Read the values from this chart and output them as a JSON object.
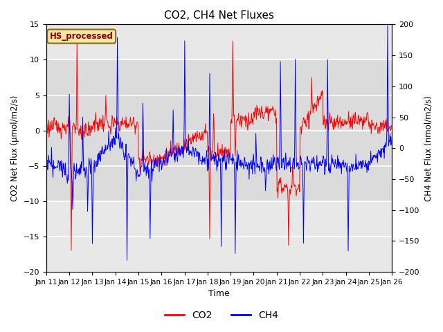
{
  "title": "CO2, CH4 Net Fluxes",
  "xlabel": "Time",
  "ylabel_left": "CO2 Net Flux (μmol/m2/s)",
  "ylabel_right": "CH4 Net Flux (nmol/m2/s)",
  "ylim_left": [
    -20,
    15
  ],
  "ylim_right": [
    -200,
    200
  ],
  "yticks_left": [
    -20,
    -15,
    -10,
    -5,
    0,
    5,
    10,
    15
  ],
  "yticks_right": [
    -200,
    -150,
    -100,
    -50,
    0,
    50,
    100,
    150,
    200
  ],
  "xticklabels": [
    "Jan 11",
    "Jan 12",
    "Jan 13",
    "Jan 14",
    "Jan 15",
    "Jan 16",
    "Jan 17",
    "Jan 18",
    "Jan 19",
    "Jan 20",
    "Jan 21",
    "Jan 22",
    "Jan 23",
    "Jan 24",
    "Jan 25",
    "Jan 26"
  ],
  "annotation_text": "HS_processed",
  "annotation_color": "#8B0000",
  "annotation_bg": "#F5E6A0",
  "annotation_edge": "#8B6914",
  "co2_color": "red",
  "ch4_color": "blue",
  "plot_bg": "#E8E8E8",
  "grid_color": "white",
  "figsize": [
    6.4,
    4.8
  ],
  "dpi": 100,
  "legend_labels": [
    "CO2",
    "CH4"
  ],
  "legend_colors": [
    "red",
    "blue"
  ]
}
